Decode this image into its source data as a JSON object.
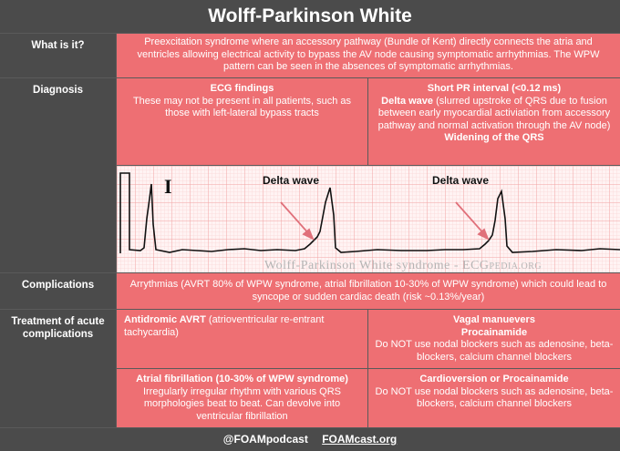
{
  "title": "Wolff-Parkinson White",
  "what": {
    "label": "What is it?",
    "text": "Preexcitation syndrome where an accessory pathway (Bundle of Kent) directly connects the atria and ventricles allowing electrical activity to bypass the AV node causing symptomatic arrhythmias. The WPW pattern can be seen in the absences of symptomatic arrhythmias."
  },
  "diagnosis": {
    "label": "Diagnosis",
    "ecg_title": "ECG findings",
    "ecg_text": "These may not be present in all patients, such as those with left-lateral bypass tracts",
    "pr_title": "Short PR interval (<0.12 ms)",
    "delta_bold": "Delta wave",
    "delta_text": " (slurred upstroke of QRS due to fusion between early myocardial activiation from accessory pathway and normal activation through the AV node)",
    "qrs": "Widening of the QRS"
  },
  "ecg_image": {
    "lead": "I",
    "annotation_1": "Delta wave",
    "annotation_2": "Delta wave",
    "watermark_main": "Wolff-Parkinson White syndrome - ECG",
    "watermark_small": "PEDIA.ORG",
    "colors": {
      "grid": "#f2a3a3",
      "trace": "#111111",
      "arrow": "#e0707a"
    }
  },
  "complications": {
    "label": "Complications",
    "text": "Arrythmias (AVRT 80% of WPW syndrome, atrial fibrillation 10-30% of WPW syndrome) which could lead to syncope or sudden cardiac death (risk ~0.13%/year)"
  },
  "treatment": {
    "label": "Treatment of acute complications",
    "antidromic_bold": "Antidromic AVRT",
    "antidromic_text": " (atrioventricular re-entrant tachycardia)",
    "vagal": "Vagal manuevers",
    "procainamide": "Procainamide",
    "nodal_warning_1": "Do NOT use nodal blockers such as adenosine, beta-blockers, calcium channel blockers",
    "afib_title": "Atrial fibrillation (10-30% of WPW syndrome)",
    "afib_text": "Irregularly irregular rhythm with various QRS morphologies beat to beat. Can devolve into ventricular fibrillation",
    "cardioversion": "Cardioversion or Procainamide",
    "nodal_warning_2": "Do NOT use nodal blockers such as adenosine, beta-blockers, calcium channel blockers"
  },
  "footer": {
    "podcast": "@FOAMpodcast",
    "site": "FOAMcast.org"
  },
  "colors": {
    "header_bg": "#4b4b4b",
    "cell_bg": "#ee6f73",
    "text": "#ffffff"
  }
}
